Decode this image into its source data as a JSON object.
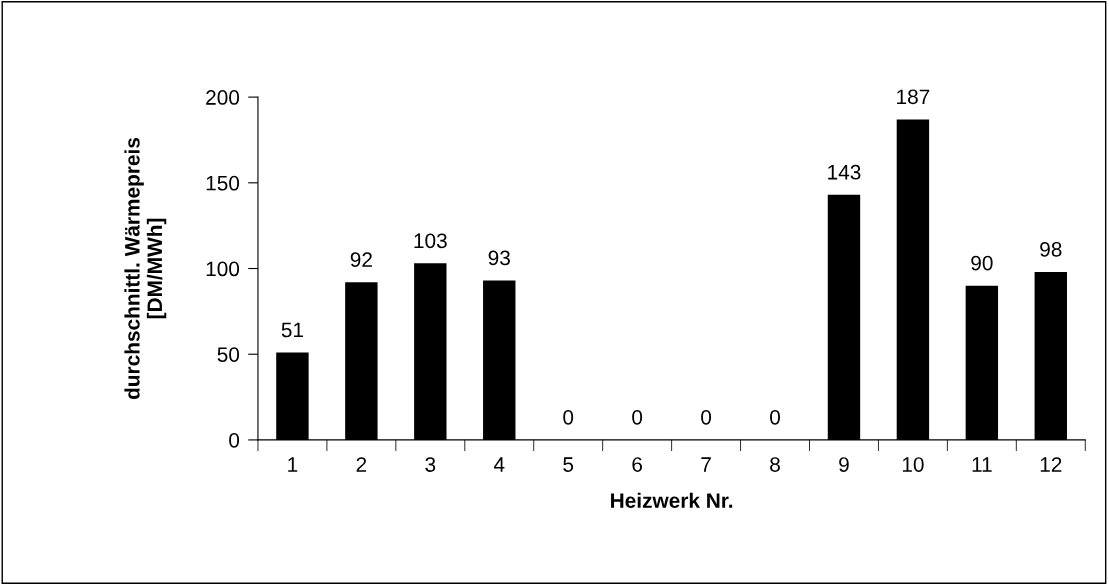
{
  "chart_data": {
    "type": "bar",
    "xlabel": "Heizwerk Nr.",
    "ylabel": "durchschnittl. Wärmepreis\n[DM/MWh]",
    "categories": [
      "1",
      "2",
      "3",
      "4",
      "5",
      "6",
      "7",
      "8",
      "9",
      "10",
      "11",
      "12"
    ],
    "values": [
      51,
      92,
      103,
      93,
      0,
      0,
      0,
      0,
      143,
      187,
      90,
      98
    ],
    "color": "#000000",
    "ylim": [
      0,
      200
    ],
    "yticks": [
      0,
      50,
      100,
      150,
      200
    ],
    "grid": false,
    "data_labels": true
  }
}
